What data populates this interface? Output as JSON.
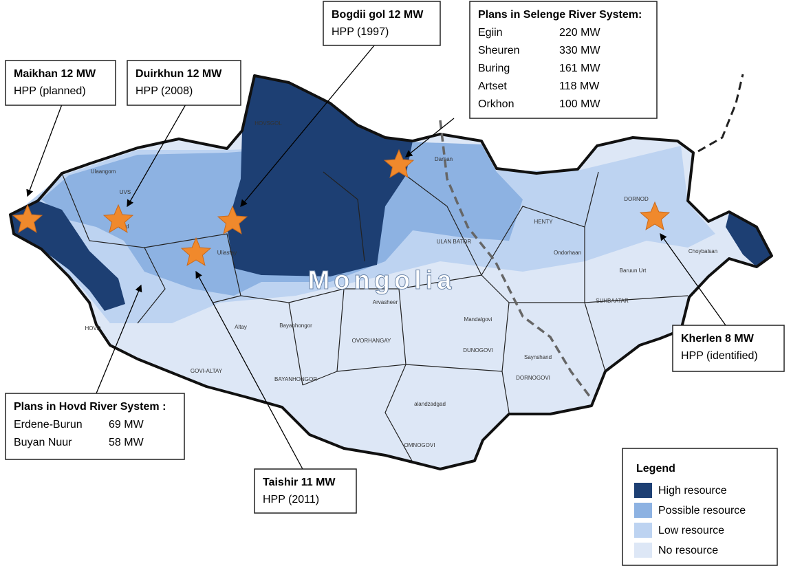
{
  "map_title": "Mongolia",
  "callouts": [
    {
      "title": "Maikhan 12 MW",
      "subtitle": "HPP (planned)"
    },
    {
      "title": "Duirkhun 12 MW",
      "subtitle": "HPP (2008)"
    },
    {
      "title": "Bogdii gol 12 MW",
      "subtitle": "HPP (1997)"
    },
    {
      "title": "Taishir 11 MW",
      "subtitle": "HPP (2011)"
    },
    {
      "title": "Kherlen 8 MW",
      "subtitle": "HPP (identified)"
    }
  ],
  "plans": [
    {
      "title": "Plans in Selenge River System:",
      "rows": [
        [
          "Egiin",
          "220 MW"
        ],
        [
          "Sheuren",
          "330 MW"
        ],
        [
          "Buring",
          "161 MW"
        ],
        [
          "Artset",
          "118 MW"
        ],
        [
          "Orkhon",
          "100 MW"
        ]
      ]
    },
    {
      "title": "Plans in Hovd River System :",
      "rows": [
        [
          "Erdene-Burun",
          "69 MW"
        ],
        [
          "Buyan Nuur",
          "58 MW"
        ]
      ]
    }
  ],
  "legend": {
    "title": "Legend",
    "items": [
      {
        "label": "High resource",
        "color": "#1d3f73"
      },
      {
        "label": "Possible resource",
        "color": "#8db2e2"
      },
      {
        "label": "Low resource",
        "color": "#bdd3f1"
      },
      {
        "label": "No resource",
        "color": "#dde7f6"
      }
    ]
  },
  "place_labels": [
    "Ulaangom",
    "UVS",
    "Hovd",
    "Uliastay",
    "HOVD",
    "Altay",
    "GOVI-ALTAY",
    "Bayanhongor",
    "BAYANHONGOR",
    "OVORHANGAY",
    "Arvasheer",
    "ULAN BATOR",
    "Darhan",
    "HENTY",
    "Ondorhaan",
    "DORNOD",
    "Choybalsan",
    "Baruun Urt",
    "SUHBAATAR",
    "Mandalgovi",
    "DUNOGOVI",
    "Saynshand",
    "DORNOGOVI",
    "alandzadgad",
    "OMNOGOVI",
    "HOVSGOL"
  ]
}
